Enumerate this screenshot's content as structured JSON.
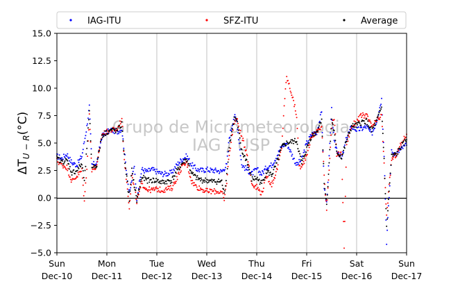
{
  "chart_data": {
    "type": "scatter",
    "title": "",
    "xlabel": "",
    "ylabel": "ΔT_{U−R}(°C)",
    "ylabel_main": "ΔT",
    "ylabel_sub": "U − R",
    "ylabel_unit": "(°C)",
    "ylim": [
      -5.0,
      15.0
    ],
    "xlim": [
      0,
      7
    ],
    "y_ticks": [
      "−5.0",
      "−2.5",
      "0.0",
      "2.5",
      "5.0",
      "7.5",
      "10.0",
      "12.5",
      "15.0"
    ],
    "y_tick_values": [
      -5.0,
      -2.5,
      0.0,
      2.5,
      5.0,
      7.5,
      10.0,
      12.5,
      15.0
    ],
    "x_ticks": [
      {
        "day": "Sun",
        "date": "Dec-10",
        "x": 0
      },
      {
        "day": "Mon",
        "date": "Dec-11",
        "x": 1
      },
      {
        "day": "Tue",
        "date": "Dec-12",
        "x": 2
      },
      {
        "day": "Wed",
        "date": "Dec-13",
        "x": 3
      },
      {
        "day": "Thu",
        "date": "Dec-14",
        "x": 4
      },
      {
        "day": "Fri",
        "date": "Dec-15",
        "x": 5
      },
      {
        "day": "Sat",
        "date": "Dec-16",
        "x": 6
      },
      {
        "day": "Sun",
        "date": "Dec-17",
        "x": 7
      }
    ],
    "grid": "vertical",
    "legend_placement": "top",
    "watermark": [
      "Grupo de Micrometeorologia",
      "IAG / USP"
    ],
    "series": [
      {
        "name": "IAG-ITU",
        "color": "#0000ff",
        "points": [
          [
            0,
            3.8
          ],
          [
            0.1,
            3.6
          ],
          [
            0.2,
            4.0
          ],
          [
            0.3,
            3.2
          ],
          [
            0.4,
            3.0
          ],
          [
            0.5,
            3.8
          ],
          [
            0.6,
            6.5
          ],
          [
            0.65,
            8.3
          ],
          [
            0.7,
            3.0
          ],
          [
            0.8,
            3.2
          ],
          [
            0.9,
            5.6
          ],
          [
            1.0,
            6.0
          ],
          [
            1.1,
            6.2
          ],
          [
            1.2,
            6.0
          ],
          [
            1.3,
            6.3
          ],
          [
            1.35,
            4.2
          ],
          [
            1.45,
            0.3
          ],
          [
            1.55,
            3.0
          ],
          [
            1.6,
            0.0
          ],
          [
            1.7,
            2.6
          ],
          [
            1.8,
            2.4
          ],
          [
            1.9,
            2.6
          ],
          [
            2.0,
            2.4
          ],
          [
            2.1,
            2.2
          ],
          [
            2.2,
            2.2
          ],
          [
            2.3,
            2.3
          ],
          [
            2.4,
            3.0
          ],
          [
            2.5,
            3.5
          ],
          [
            2.6,
            3.8
          ],
          [
            2.7,
            3.0
          ],
          [
            2.8,
            2.6
          ],
          [
            2.9,
            2.5
          ],
          [
            3.0,
            2.6
          ],
          [
            3.1,
            2.5
          ],
          [
            3.2,
            2.5
          ],
          [
            3.3,
            2.4
          ],
          [
            3.4,
            3.0
          ],
          [
            3.45,
            5.5
          ],
          [
            3.55,
            7.5
          ],
          [
            3.6,
            7.0
          ],
          [
            3.7,
            3.0
          ],
          [
            3.8,
            2.6
          ],
          [
            3.9,
            2.2
          ],
          [
            4.0,
            2.6
          ],
          [
            4.1,
            2.2
          ],
          [
            4.2,
            2.8
          ],
          [
            4.3,
            3.0
          ],
          [
            4.4,
            3.8
          ],
          [
            4.5,
            4.7
          ],
          [
            4.6,
            5.0
          ],
          [
            4.8,
            3.0
          ],
          [
            4.9,
            3.5
          ],
          [
            5.0,
            5.0
          ],
          [
            5.1,
            5.8
          ],
          [
            5.2,
            6.0
          ],
          [
            5.3,
            7.8
          ],
          [
            5.35,
            1.0
          ],
          [
            5.4,
            -0.5
          ],
          [
            5.5,
            8.0
          ],
          [
            5.55,
            5.0
          ],
          [
            5.6,
            4.5
          ],
          [
            5.7,
            3.5
          ],
          [
            5.8,
            5.5
          ],
          [
            5.9,
            6.5
          ],
          [
            6.0,
            6.2
          ],
          [
            6.1,
            6.3
          ],
          [
            6.2,
            6.5
          ],
          [
            6.3,
            5.8
          ],
          [
            6.4,
            7.0
          ],
          [
            6.5,
            9.0
          ],
          [
            6.55,
            4.0
          ],
          [
            6.6,
            -4.0
          ],
          [
            6.7,
            4.2
          ],
          [
            6.8,
            4.0
          ],
          [
            6.9,
            4.5
          ],
          [
            7.0,
            4.8
          ]
        ]
      },
      {
        "name": "SFZ-ITU",
        "color": "#ff0000",
        "points": [
          [
            0,
            3.4
          ],
          [
            0.1,
            3.0
          ],
          [
            0.2,
            2.8
          ],
          [
            0.3,
            1.5
          ],
          [
            0.4,
            2.0
          ],
          [
            0.5,
            2.5
          ],
          [
            0.55,
            -0.3
          ],
          [
            0.6,
            2.8
          ],
          [
            0.65,
            7.5
          ],
          [
            0.7,
            2.6
          ],
          [
            0.8,
            2.8
          ],
          [
            0.9,
            5.8
          ],
          [
            1.0,
            6.0
          ],
          [
            1.1,
            6.2
          ],
          [
            1.2,
            6.2
          ],
          [
            1.3,
            7.2
          ],
          [
            1.35,
            3.5
          ],
          [
            1.45,
            -0.8
          ],
          [
            1.5,
            2.0
          ],
          [
            1.6,
            -0.3
          ],
          [
            1.7,
            1.3
          ],
          [
            1.8,
            0.8
          ],
          [
            1.9,
            0.7
          ],
          [
            2.0,
            0.8
          ],
          [
            2.1,
            0.7
          ],
          [
            2.2,
            0.8
          ],
          [
            2.3,
            0.9
          ],
          [
            2.4,
            1.8
          ],
          [
            2.5,
            2.8
          ],
          [
            2.6,
            3.2
          ],
          [
            2.7,
            1.5
          ],
          [
            2.8,
            1.0
          ],
          [
            2.9,
            0.8
          ],
          [
            3.0,
            0.6
          ],
          [
            3.1,
            0.6
          ],
          [
            3.2,
            0.6
          ],
          [
            3.3,
            0.5
          ],
          [
            3.35,
            -0.2
          ],
          [
            3.4,
            1.5
          ],
          [
            3.45,
            4.0
          ],
          [
            3.55,
            7.0
          ],
          [
            3.6,
            7.2
          ],
          [
            3.7,
            5.5
          ],
          [
            3.8,
            4.2
          ],
          [
            3.9,
            1.3
          ],
          [
            4.0,
            1.0
          ],
          [
            4.1,
            0.4
          ],
          [
            4.2,
            2.0
          ],
          [
            4.3,
            1.2
          ],
          [
            4.4,
            2.5
          ],
          [
            4.5,
            4.5
          ],
          [
            4.55,
            8.5
          ],
          [
            4.6,
            11.0
          ],
          [
            4.7,
            9.5
          ],
          [
            4.8,
            7.5
          ],
          [
            4.85,
            3.0
          ],
          [
            4.9,
            2.7
          ],
          [
            5.0,
            4.0
          ],
          [
            5.1,
            5.6
          ],
          [
            5.2,
            6.0
          ],
          [
            5.3,
            6.5
          ],
          [
            5.35,
            2.0
          ],
          [
            5.4,
            -1.0
          ],
          [
            5.5,
            6.5
          ],
          [
            5.55,
            7.2
          ],
          [
            5.6,
            4.0
          ],
          [
            5.7,
            4.0
          ],
          [
            5.75,
            -4.5
          ],
          [
            5.8,
            5.0
          ],
          [
            5.9,
            6.5
          ],
          [
            6.0,
            7.0
          ],
          [
            6.1,
            7.5
          ],
          [
            6.2,
            7.5
          ],
          [
            6.3,
            6.5
          ],
          [
            6.4,
            7.0
          ],
          [
            6.5,
            7.5
          ],
          [
            6.55,
            3.0
          ],
          [
            6.6,
            -1.5
          ],
          [
            6.7,
            3.5
          ],
          [
            6.8,
            4.0
          ],
          [
            6.9,
            5.0
          ],
          [
            7.0,
            5.8
          ]
        ]
      },
      {
        "name": "Average",
        "color": "#000000",
        "points": [
          [
            0,
            3.6
          ],
          [
            0.1,
            3.3
          ],
          [
            0.2,
            3.4
          ],
          [
            0.3,
            2.3
          ],
          [
            0.4,
            2.5
          ],
          [
            0.5,
            3.1
          ],
          [
            0.55,
            1.5
          ],
          [
            0.6,
            4.5
          ],
          [
            0.65,
            7.8
          ],
          [
            0.7,
            2.8
          ],
          [
            0.8,
            3.0
          ],
          [
            0.9,
            5.7
          ],
          [
            1.0,
            6.0
          ],
          [
            1.1,
            6.2
          ],
          [
            1.2,
            6.1
          ],
          [
            1.3,
            6.7
          ],
          [
            1.35,
            3.8
          ],
          [
            1.45,
            -0.2
          ],
          [
            1.5,
            2.5
          ],
          [
            1.6,
            -0.2
          ],
          [
            1.7,
            1.9
          ],
          [
            1.8,
            1.6
          ],
          [
            1.9,
            1.6
          ],
          [
            2.0,
            1.6
          ],
          [
            2.1,
            1.4
          ],
          [
            2.2,
            1.5
          ],
          [
            2.3,
            1.6
          ],
          [
            2.4,
            2.4
          ],
          [
            2.5,
            3.1
          ],
          [
            2.6,
            3.5
          ],
          [
            2.7,
            2.2
          ],
          [
            2.8,
            1.8
          ],
          [
            2.9,
            1.6
          ],
          [
            3.0,
            1.6
          ],
          [
            3.1,
            1.5
          ],
          [
            3.2,
            1.5
          ],
          [
            3.3,
            1.5
          ],
          [
            3.35,
            0.3
          ],
          [
            3.4,
            2.2
          ],
          [
            3.45,
            4.8
          ],
          [
            3.55,
            7.2
          ],
          [
            3.6,
            7.1
          ],
          [
            3.7,
            4.2
          ],
          [
            3.8,
            3.4
          ],
          [
            3.9,
            1.7
          ],
          [
            4.0,
            1.8
          ],
          [
            4.1,
            1.3
          ],
          [
            4.2,
            2.4
          ],
          [
            4.3,
            2.1
          ],
          [
            4.4,
            3.1
          ],
          [
            4.5,
            4.6
          ],
          [
            4.6,
            5.0
          ],
          [
            4.8,
            5.2
          ],
          [
            4.9,
            3.1
          ],
          [
            5.0,
            4.5
          ],
          [
            5.1,
            5.7
          ],
          [
            5.2,
            6.0
          ],
          [
            5.3,
            7.2
          ],
          [
            5.35,
            1.5
          ],
          [
            5.4,
            -0.7
          ],
          [
            5.5,
            7.2
          ],
          [
            5.55,
            6.0
          ],
          [
            5.6,
            4.2
          ],
          [
            5.7,
            3.7
          ],
          [
            5.8,
            5.2
          ],
          [
            5.9,
            6.5
          ],
          [
            6.0,
            6.6
          ],
          [
            6.1,
            6.9
          ],
          [
            6.2,
            7.0
          ],
          [
            6.3,
            6.1
          ],
          [
            6.4,
            7.0
          ],
          [
            6.5,
            8.2
          ],
          [
            6.55,
            3.5
          ],
          [
            6.6,
            -2.7
          ],
          [
            6.7,
            3.8
          ],
          [
            6.8,
            4.0
          ],
          [
            6.9,
            4.7
          ],
          [
            7.0,
            5.3
          ]
        ]
      }
    ]
  }
}
